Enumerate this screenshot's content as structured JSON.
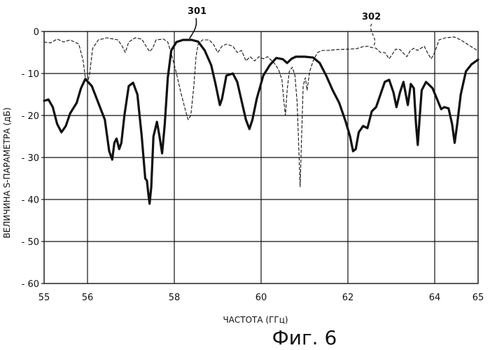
{
  "figure": {
    "caption": "Фиг. 6"
  },
  "chart_data": {
    "type": "line",
    "title": "",
    "xlabel": "ЧАСТОТА (ГГц)",
    "ylabel": "ВЕЛИЧИНА S-ПАРАМЕТРА (дБ)",
    "xlim": [
      55,
      65
    ],
    "ylim": [
      -60,
      0
    ],
    "grid": true,
    "x_ticks": [
      55,
      56,
      58,
      60,
      62,
      64,
      65
    ],
    "x_tick_labels": [
      "55",
      "56",
      "58",
      "60",
      "62",
      "64",
      "65"
    ],
    "x_gridlines": [
      56,
      58,
      60,
      62,
      64
    ],
    "y_ticks": [
      0,
      -10,
      -20,
      -30,
      -40,
      -50,
      -60
    ],
    "y_tick_labels": [
      "0",
      "- 10",
      "- 20",
      "- 30",
      "- 40",
      "- 50",
      "- 60"
    ],
    "series": [
      {
        "name": "301",
        "style": "solid-thick",
        "color": "#111111",
        "points": [
          [
            55.0,
            -16.5
          ],
          [
            55.1,
            -16.2
          ],
          [
            55.2,
            -18.0
          ],
          [
            55.3,
            -22.0
          ],
          [
            55.4,
            -24.0
          ],
          [
            55.5,
            -22.5
          ],
          [
            55.6,
            -19.5
          ],
          [
            55.75,
            -17.0
          ],
          [
            55.85,
            -13.5
          ],
          [
            55.95,
            -11.3
          ],
          [
            56.1,
            -13.0
          ],
          [
            56.25,
            -17.0
          ],
          [
            56.4,
            -21.0
          ],
          [
            56.5,
            -28.5
          ],
          [
            56.57,
            -30.5
          ],
          [
            56.62,
            -26.5
          ],
          [
            56.67,
            -25.5
          ],
          [
            56.73,
            -28.0
          ],
          [
            56.78,
            -26.5
          ],
          [
            56.85,
            -20.0
          ],
          [
            56.95,
            -13.0
          ],
          [
            57.05,
            -12.2
          ],
          [
            57.15,
            -15.0
          ],
          [
            57.25,
            -25.0
          ],
          [
            57.33,
            -35.0
          ],
          [
            57.37,
            -35.5
          ],
          [
            57.4,
            -38.5
          ],
          [
            57.43,
            -41.0
          ],
          [
            57.47,
            -37.0
          ],
          [
            57.52,
            -25.0
          ],
          [
            57.6,
            -21.5
          ],
          [
            57.66,
            -25.0
          ],
          [
            57.72,
            -29.0
          ],
          [
            57.78,
            -22.0
          ],
          [
            57.85,
            -11.0
          ],
          [
            57.93,
            -4.5
          ],
          [
            58.05,
            -2.5
          ],
          [
            58.2,
            -2.0
          ],
          [
            58.4,
            -2.0
          ],
          [
            58.55,
            -2.4
          ],
          [
            58.7,
            -4.5
          ],
          [
            58.85,
            -8.0
          ],
          [
            58.95,
            -12.5
          ],
          [
            59.05,
            -17.5
          ],
          [
            59.1,
            -16.0
          ],
          [
            59.2,
            -10.5
          ],
          [
            59.35,
            -10.0
          ],
          [
            59.45,
            -12.0
          ],
          [
            59.55,
            -16.5
          ],
          [
            59.65,
            -21.0
          ],
          [
            59.73,
            -23.2
          ],
          [
            59.8,
            -21.0
          ],
          [
            59.9,
            -16.0
          ],
          [
            60.05,
            -10.5
          ],
          [
            60.2,
            -8.0
          ],
          [
            60.35,
            -6.3
          ],
          [
            60.5,
            -6.6
          ],
          [
            60.6,
            -7.5
          ],
          [
            60.7,
            -6.5
          ],
          [
            60.8,
            -6.0
          ],
          [
            61.0,
            -6.0
          ],
          [
            61.2,
            -6.2
          ],
          [
            61.35,
            -7.5
          ],
          [
            61.5,
            -10.5
          ],
          [
            61.65,
            -14.0
          ],
          [
            61.8,
            -17.0
          ],
          [
            61.95,
            -21.5
          ],
          [
            62.05,
            -25.0
          ],
          [
            62.12,
            -28.5
          ],
          [
            62.18,
            -28.0
          ],
          [
            62.25,
            -24.0
          ],
          [
            62.35,
            -22.5
          ],
          [
            62.45,
            -23.0
          ],
          [
            62.55,
            -19.0
          ],
          [
            62.65,
            -18.0
          ],
          [
            62.75,
            -15.0
          ],
          [
            62.85,
            -12.0
          ],
          [
            62.95,
            -11.5
          ],
          [
            63.05,
            -14.5
          ],
          [
            63.12,
            -18.0
          ],
          [
            63.2,
            -14.5
          ],
          [
            63.28,
            -12.0
          ],
          [
            63.38,
            -17.5
          ],
          [
            63.45,
            -12.5
          ],
          [
            63.52,
            -13.5
          ],
          [
            63.57,
            -22.0
          ],
          [
            63.61,
            -27.0
          ],
          [
            63.65,
            -21.0
          ],
          [
            63.7,
            -14.0
          ],
          [
            63.8,
            -12.0
          ],
          [
            63.95,
            -13.5
          ],
          [
            64.05,
            -16.0
          ],
          [
            64.15,
            -18.5
          ],
          [
            64.22,
            -18.0
          ],
          [
            64.32,
            -18.3
          ],
          [
            64.4,
            -22.0
          ],
          [
            64.46,
            -26.5
          ],
          [
            64.52,
            -22.0
          ],
          [
            64.6,
            -15.0
          ],
          [
            64.72,
            -9.5
          ],
          [
            64.85,
            -7.8
          ],
          [
            65.0,
            -6.7
          ]
        ]
      },
      {
        "name": "302",
        "style": "dashed",
        "color": "#111111",
        "points": [
          [
            55.0,
            -2.5
          ],
          [
            55.15,
            -2.7
          ],
          [
            55.3,
            -1.8
          ],
          [
            55.45,
            -2.5
          ],
          [
            55.6,
            -2.0
          ],
          [
            55.8,
            -3.0
          ],
          [
            55.9,
            -7.0
          ],
          [
            55.95,
            -11.0
          ],
          [
            56.0,
            -12.5
          ],
          [
            56.05,
            -10.0
          ],
          [
            56.12,
            -4.0
          ],
          [
            56.25,
            -2.0
          ],
          [
            56.45,
            -1.5
          ],
          [
            56.6,
            -1.8
          ],
          [
            56.7,
            -2.0
          ],
          [
            56.8,
            -3.5
          ],
          [
            56.87,
            -5.0
          ],
          [
            56.95,
            -2.5
          ],
          [
            57.1,
            -1.5
          ],
          [
            57.25,
            -1.8
          ],
          [
            57.35,
            -3.5
          ],
          [
            57.43,
            -4.8
          ],
          [
            57.5,
            -4.0
          ],
          [
            57.58,
            -2.0
          ],
          [
            57.75,
            -1.8
          ],
          [
            57.85,
            -2.5
          ],
          [
            57.95,
            -6.0
          ],
          [
            58.05,
            -10.0
          ],
          [
            58.15,
            -14.5
          ],
          [
            58.25,
            -18.5
          ],
          [
            58.32,
            -21.0
          ],
          [
            58.38,
            -20.0
          ],
          [
            58.45,
            -13.0
          ],
          [
            58.5,
            -6.0
          ],
          [
            58.55,
            -3.0
          ],
          [
            58.65,
            -2.0
          ],
          [
            58.8,
            -2.0
          ],
          [
            58.9,
            -3.0
          ],
          [
            59.0,
            -5.0
          ],
          [
            59.1,
            -3.5
          ],
          [
            59.2,
            -3.0
          ],
          [
            59.35,
            -3.5
          ],
          [
            59.45,
            -5.0
          ],
          [
            59.55,
            -4.5
          ],
          [
            59.65,
            -7.0
          ],
          [
            59.75,
            -6.0
          ],
          [
            59.85,
            -7.0
          ],
          [
            59.95,
            -6.0
          ],
          [
            60.05,
            -6.5
          ],
          [
            60.15,
            -6.0
          ],
          [
            60.3,
            -7.5
          ],
          [
            60.4,
            -9.0
          ],
          [
            60.48,
            -11.5
          ],
          [
            60.52,
            -16.0
          ],
          [
            60.56,
            -20.0
          ],
          [
            60.6,
            -14.0
          ],
          [
            60.65,
            -9.5
          ],
          [
            60.72,
            -8.5
          ],
          [
            60.78,
            -10.5
          ],
          [
            60.83,
            -17.0
          ],
          [
            60.87,
            -28.0
          ],
          [
            60.9,
            -37.0
          ],
          [
            60.93,
            -26.0
          ],
          [
            60.97,
            -13.0
          ],
          [
            61.02,
            -11.0
          ],
          [
            61.06,
            -14.0
          ],
          [
            61.12,
            -9.5
          ],
          [
            61.2,
            -7.0
          ],
          [
            61.3,
            -5.0
          ],
          [
            61.42,
            -4.5
          ],
          [
            61.55,
            -4.5
          ],
          [
            61.75,
            -4.3
          ],
          [
            62.0,
            -4.2
          ],
          [
            62.2,
            -4.1
          ],
          [
            62.35,
            -3.6
          ],
          [
            62.45,
            -3.5
          ],
          [
            62.55,
            -3.8
          ],
          [
            62.65,
            -4.0
          ],
          [
            62.75,
            -5.0
          ],
          [
            62.85,
            -5.0
          ],
          [
            62.95,
            -6.5
          ],
          [
            63.02,
            -5.5
          ],
          [
            63.1,
            -4.2
          ],
          [
            63.2,
            -4.3
          ],
          [
            63.28,
            -5.2
          ],
          [
            63.36,
            -6.0
          ],
          [
            63.44,
            -4.5
          ],
          [
            63.52,
            -4.0
          ],
          [
            63.6,
            -4.5
          ],
          [
            63.68,
            -4.0
          ],
          [
            63.76,
            -3.5
          ],
          [
            63.84,
            -5.2
          ],
          [
            63.92,
            -6.5
          ],
          [
            64.0,
            -5.0
          ],
          [
            64.1,
            -2.0
          ],
          [
            64.25,
            -1.5
          ],
          [
            64.45,
            -1.3
          ],
          [
            64.6,
            -2.0
          ],
          [
            64.75,
            -3.0
          ],
          [
            64.9,
            -4.0
          ],
          [
            65.0,
            -4.6
          ]
        ]
      }
    ],
    "annotations": [
      {
        "label": "301",
        "series": "301",
        "target": [
          58.35,
          -2.0
        ]
      },
      {
        "label": "302",
        "series": "302",
        "target": [
          62.6,
          -3.6
        ]
      }
    ]
  }
}
